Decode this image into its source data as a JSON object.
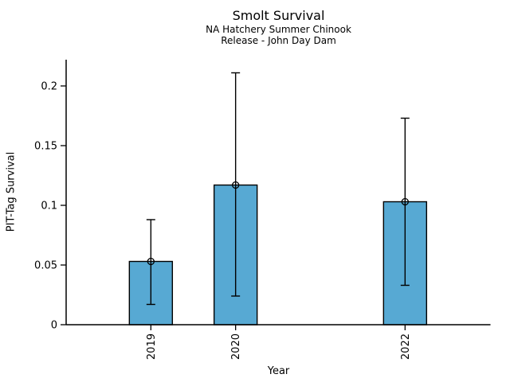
{
  "chart_data": {
    "type": "bar",
    "title": "Smolt Survival",
    "subtitle": [
      "NA Hatchery Summer Chinook",
      "Release - John Day Dam"
    ],
    "xlabel": "Year",
    "ylabel": "PIT-Tag Survival",
    "categories": [
      "2019",
      "2020",
      "2022"
    ],
    "x_numeric": [
      2019,
      2020,
      2022
    ],
    "values": [
      0.053,
      0.117,
      0.103
    ],
    "error_bars": {
      "lower": [
        0.017,
        0.024,
        0.033
      ],
      "upper": [
        0.088,
        0.211,
        0.173
      ]
    },
    "y_ticks": [
      {
        "value": 0,
        "label": "0"
      },
      {
        "value": 0.05,
        "label": "0.05"
      },
      {
        "value": 0.1,
        "label": "0.1"
      },
      {
        "value": 0.15,
        "label": "0.15"
      },
      {
        "value": 0.2,
        "label": "0.2"
      }
    ],
    "ylim": [
      0,
      0.222
    ],
    "xlim": [
      2018,
      2023
    ],
    "grid": false,
    "legend": false,
    "bar_color": "#57A9D3",
    "bar_edge_color": "#000000",
    "error_color": "#000000",
    "marker": "open-circle"
  }
}
